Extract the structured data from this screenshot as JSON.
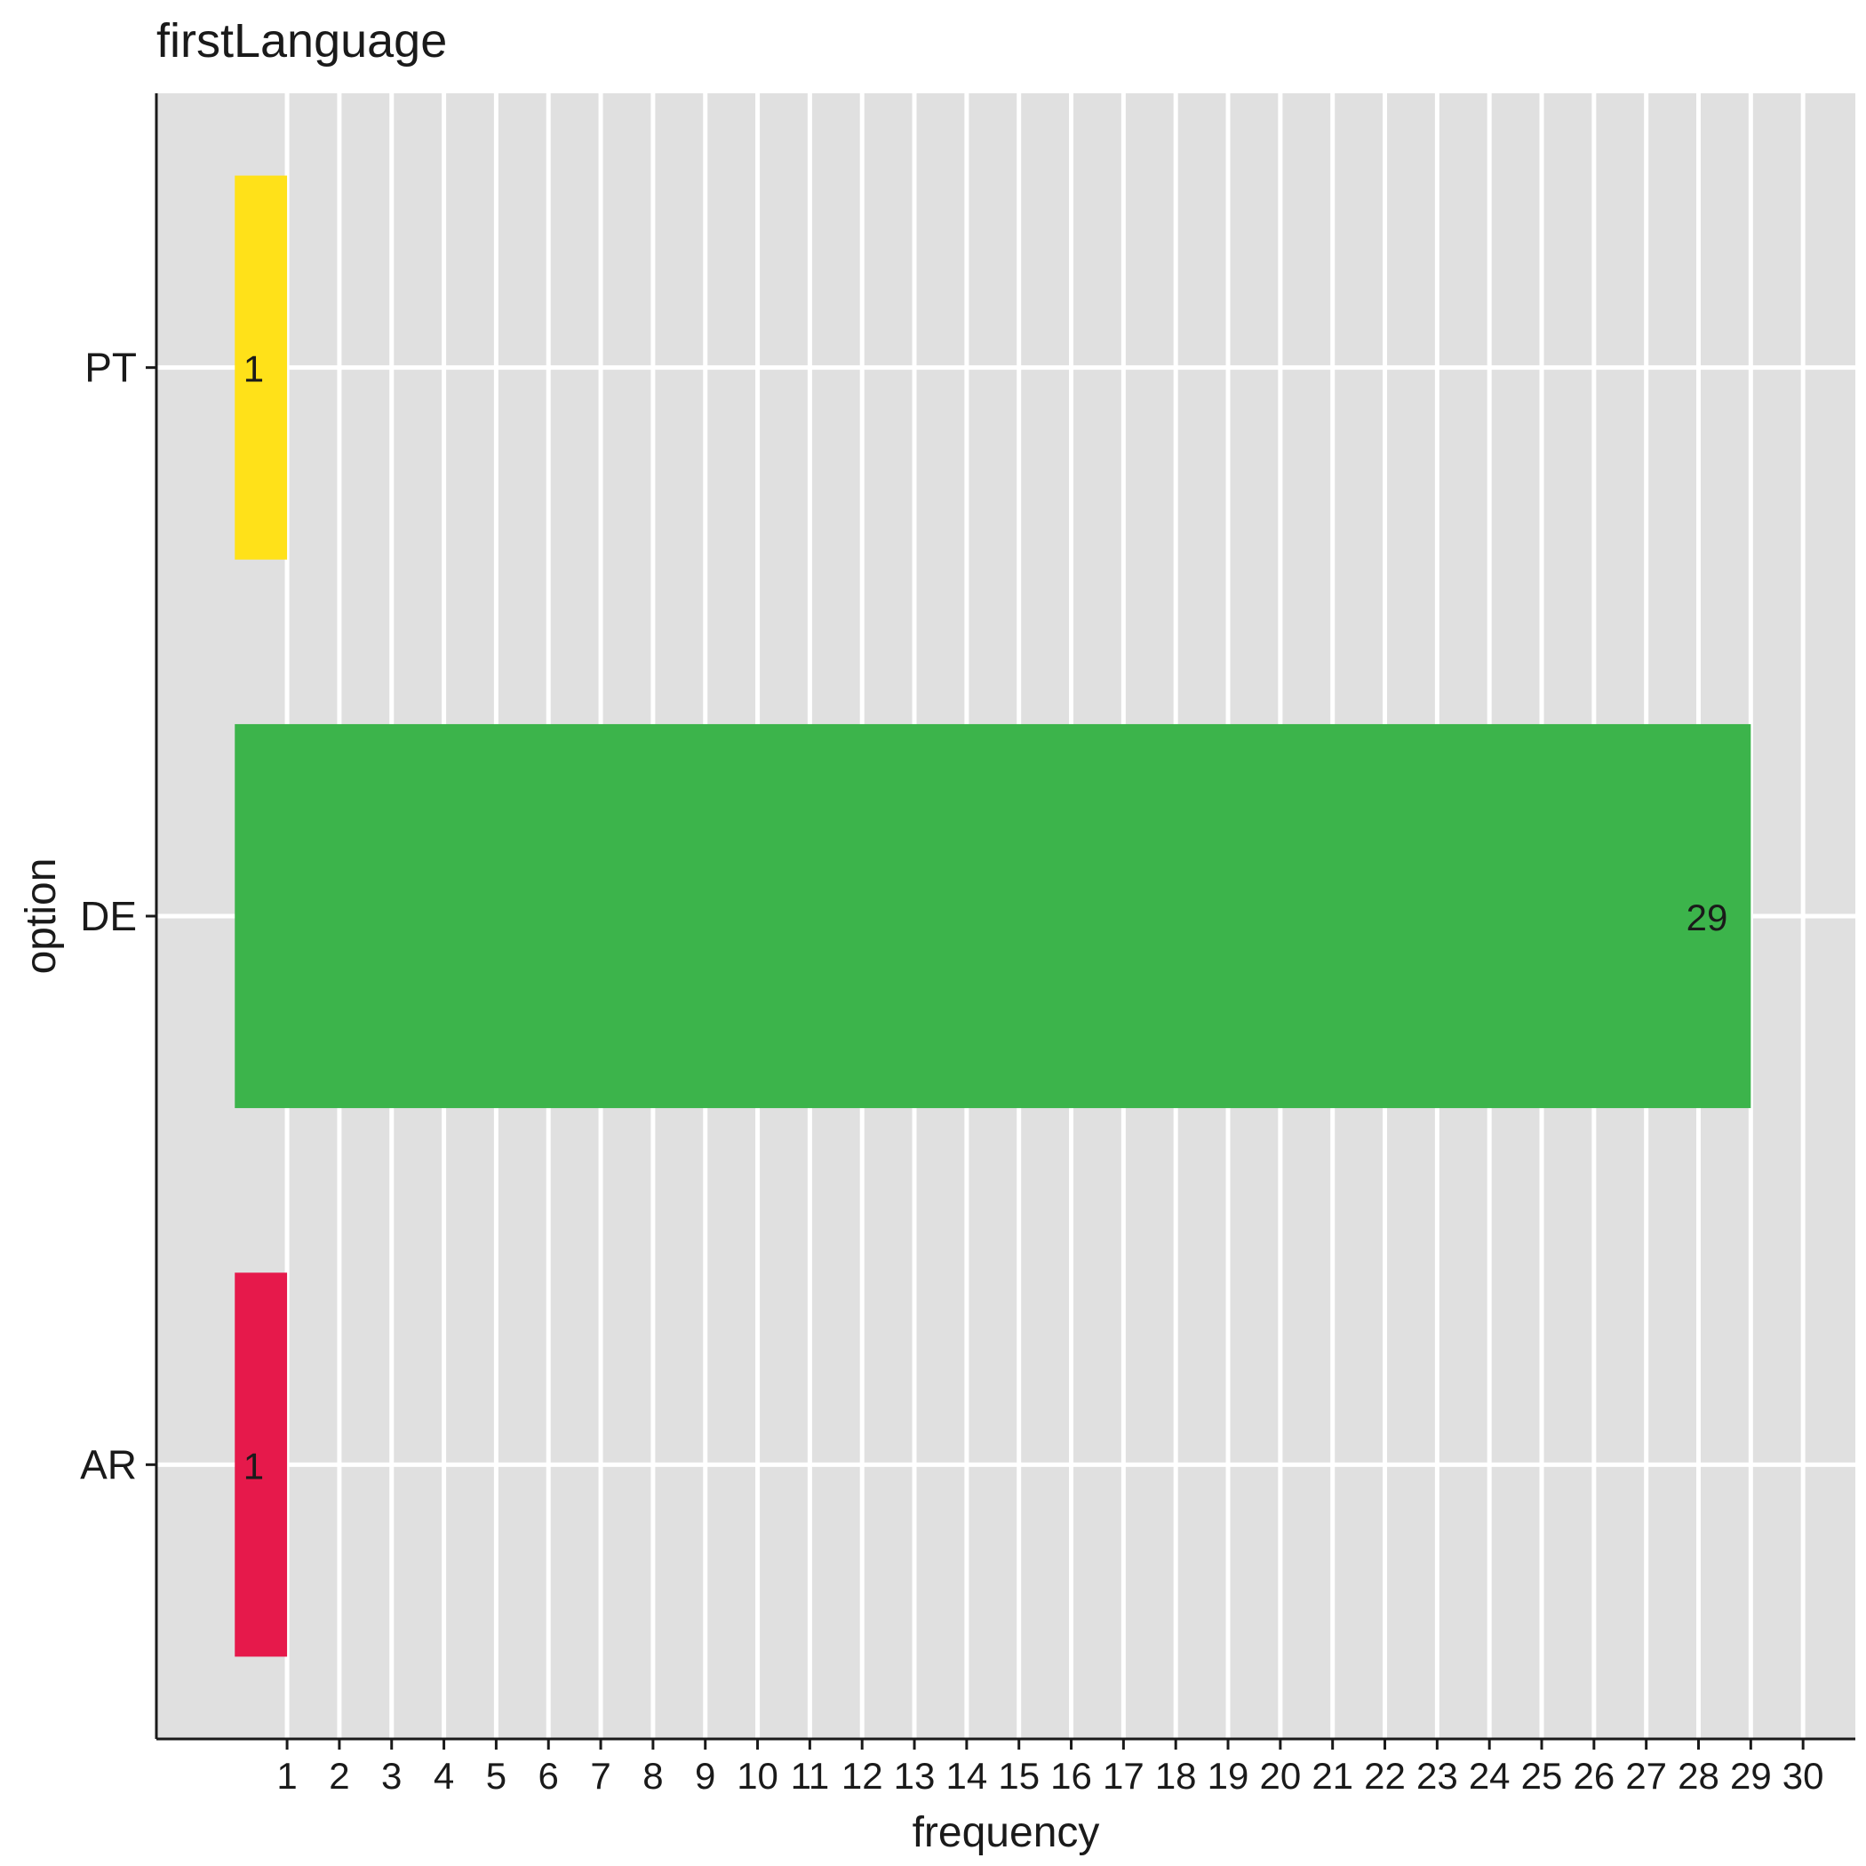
{
  "chart_data": {
    "type": "bar",
    "orientation": "horizontal",
    "title": "firstLanguage",
    "xlabel": "frequency",
    "ylabel": "option",
    "categories": [
      "AR",
      "DE",
      "PT"
    ],
    "values": [
      1,
      29,
      1
    ],
    "data_labels": [
      "1",
      "29",
      "1"
    ],
    "colors": [
      "#E6194B",
      "#3CB44B",
      "#FFE119"
    ],
    "xlim": [
      -1.5,
      31
    ],
    "x_ticks": [
      1,
      2,
      3,
      4,
      5,
      6,
      7,
      8,
      9,
      10,
      11,
      12,
      13,
      14,
      15,
      16,
      17,
      18,
      19,
      20,
      21,
      22,
      23,
      24,
      25,
      26,
      27,
      28,
      29,
      30
    ],
    "grid": true,
    "panel_background": "#E0E0E0",
    "legend": "none"
  }
}
